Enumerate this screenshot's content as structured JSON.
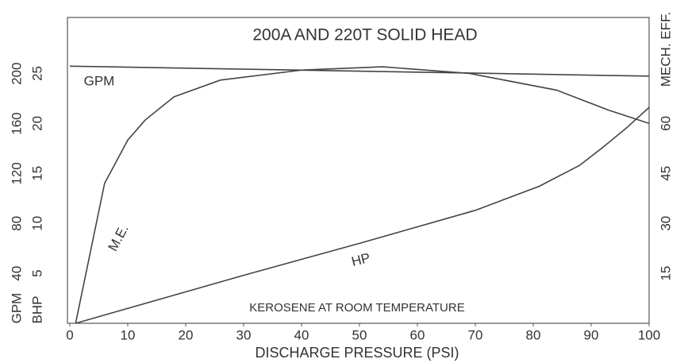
{
  "chart_data": {
    "type": "line",
    "title": "200A AND 220T SOLID HEAD",
    "note": "KEROSENE AT ROOM TEMPERATURE",
    "xlabel": "DISCHARGE PRESSURE (PSI)",
    "ylabel": "GPM",
    "y2label": "BHP",
    "y3label": "MECH. EFF.",
    "xlim": [
      0,
      100
    ],
    "xticks": [
      0,
      10,
      20,
      30,
      40,
      50,
      60,
      70,
      80,
      90,
      100
    ],
    "ylim": [
      0,
      245
    ],
    "yticks": [
      40,
      80,
      120,
      160,
      200
    ],
    "y2lim": [
      0,
      30.6
    ],
    "y2ticks": [
      5,
      10,
      15,
      20,
      25
    ],
    "y3lim": [
      0,
      91.8
    ],
    "y3ticks": [
      15,
      30,
      45,
      60
    ],
    "grid": false,
    "series": [
      {
        "name": "GPM",
        "axis": "y",
        "color": "#444444",
        "x": [
          0,
          100
        ],
        "values": [
          206,
          198
        ]
      },
      {
        "name": "M.E.",
        "axis": "y3",
        "color": "#444444",
        "x": [
          1,
          6,
          10,
          13,
          18,
          26,
          40,
          54,
          69,
          84,
          93,
          100
        ],
        "values": [
          0,
          42,
          55,
          61,
          68,
          73,
          76,
          77,
          75,
          70,
          64,
          60
        ]
      },
      {
        "name": "HP",
        "axis": "y2",
        "color": "#444444",
        "x": [
          1,
          30,
          50,
          70,
          81,
          88,
          92,
          96,
          100
        ],
        "values": [
          0,
          4.8,
          8,
          11.3,
          13.7,
          15.8,
          17.6,
          19.5,
          21.6
        ]
      }
    ]
  }
}
